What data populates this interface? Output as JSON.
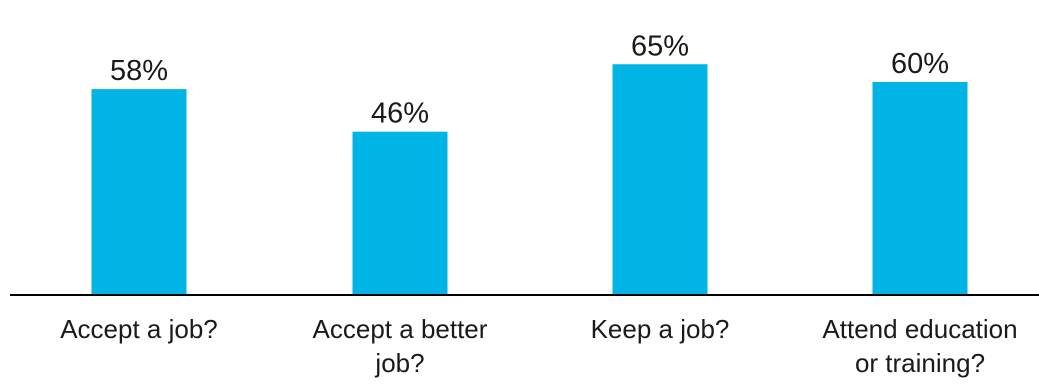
{
  "chart_data": {
    "type": "bar",
    "categories": [
      "Accept a job?",
      "Accept a better job?",
      "Keep a job?",
      "Attend education or training?"
    ],
    "category_lines": [
      [
        "Accept a job?"
      ],
      [
        "Accept a better",
        "job?"
      ],
      [
        "Keep a job?"
      ],
      [
        "Attend education",
        "or training?"
      ]
    ],
    "values": [
      58,
      46,
      65,
      60
    ],
    "value_labels": [
      "58%",
      "46%",
      "65%",
      "60%"
    ],
    "ylim": [
      0,
      70
    ],
    "grid": false,
    "bar_color": "#00b4e6",
    "axis_color": "#000000",
    "title": "",
    "xlabel": "",
    "ylabel": ""
  }
}
